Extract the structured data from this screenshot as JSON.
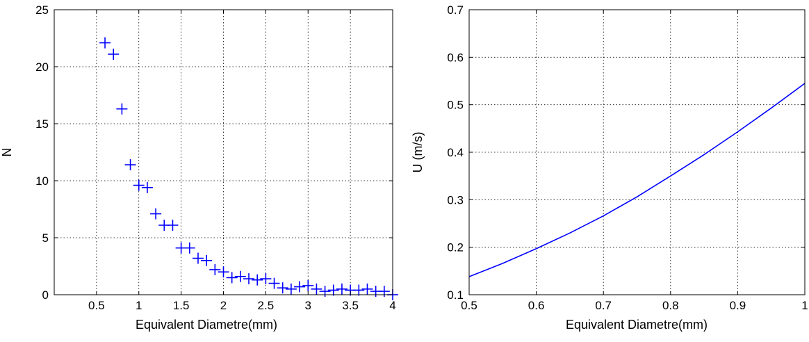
{
  "chart_data": [
    {
      "type": "scatter",
      "marker": "+",
      "color": "#0000ff",
      "xlabel": "Equivalent Diametre(mm)",
      "ylabel": "N",
      "xlim": [
        0,
        4
      ],
      "ylim": [
        0,
        25
      ],
      "xticks": [
        0.5,
        1,
        1.5,
        2,
        2.5,
        3,
        3.5,
        4
      ],
      "xtick_labels": [
        "0.5",
        "1",
        "1.5",
        "2",
        "2.5",
        "3",
        "3.5",
        "4"
      ],
      "yticks": [
        0,
        5,
        10,
        15,
        20,
        25
      ],
      "ytick_labels": [
        "0",
        "5",
        "10",
        "15",
        "20",
        "25"
      ],
      "grid": true,
      "grid_style": "dotted",
      "series": [
        {
          "x": [
            0.6,
            0.7,
            0.8,
            0.9,
            1.0,
            1.1,
            1.2,
            1.3,
            1.4,
            1.5,
            1.6,
            1.7,
            1.8,
            1.9,
            2.0,
            2.1,
            2.2,
            2.3,
            2.4,
            2.5,
            2.6,
            2.7,
            2.8,
            2.9,
            3.0,
            3.1,
            3.2,
            3.3,
            3.4,
            3.5,
            3.6,
            3.7,
            3.8,
            3.9,
            4.0
          ],
          "y": [
            22.1,
            21.1,
            16.3,
            11.4,
            9.6,
            9.4,
            7.1,
            6.1,
            6.1,
            4.1,
            4.1,
            3.2,
            3.0,
            2.2,
            2.0,
            1.5,
            1.6,
            1.4,
            1.3,
            1.4,
            1.0,
            0.6,
            0.5,
            0.7,
            0.8,
            0.5,
            0.3,
            0.4,
            0.5,
            0.4,
            0.4,
            0.5,
            0.3,
            0.3,
            0.0
          ]
        }
      ]
    },
    {
      "type": "line",
      "color": "#0000ff",
      "xlabel": "Equivalent Diametre(mm)",
      "ylabel": "U (m/s)",
      "xlim": [
        0.5,
        1
      ],
      "ylim": [
        0.1,
        0.7
      ],
      "xticks": [
        0.5,
        0.6,
        0.7,
        0.8,
        0.9,
        1
      ],
      "xtick_labels": [
        "0.5",
        "0.6",
        "0.7",
        "0.8",
        "0.9",
        "1"
      ],
      "yticks": [
        0.1,
        0.2,
        0.3,
        0.4,
        0.5,
        0.6,
        0.7
      ],
      "ytick_labels": [
        "0.1",
        "0.2",
        "0.3",
        "0.4",
        "0.5",
        "0.6",
        "0.7"
      ],
      "grid": true,
      "grid_style": "dotted",
      "series": [
        {
          "x": [
            0.5,
            0.55,
            0.6,
            0.65,
            0.7,
            0.75,
            0.8,
            0.85,
            0.9,
            0.95,
            1.0
          ],
          "y": [
            0.138,
            0.166,
            0.197,
            0.23,
            0.266,
            0.306,
            0.35,
            0.395,
            0.443,
            0.493,
            0.545
          ]
        }
      ]
    }
  ]
}
